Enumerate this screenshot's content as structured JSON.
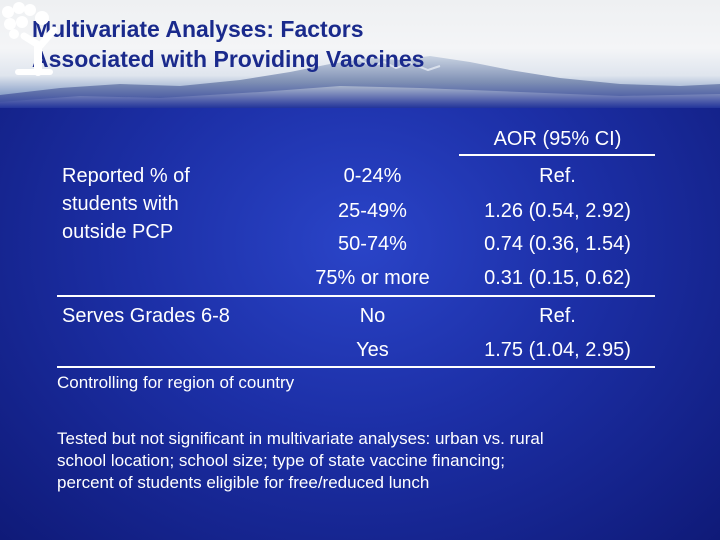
{
  "slide": {
    "title_line1": "Multivariate Analyses: Factors",
    "title_line2": "Associated with Providing Vaccines"
  },
  "table": {
    "header": "AOR (95% CI)",
    "groups": [
      {
        "label_lines": [
          "Reported % of",
          "students with",
          "outside PCP"
        ],
        "levels": [
          "0-24%",
          "25-49%",
          "50-74%",
          "75% or more"
        ],
        "aor": [
          "Ref.",
          "1.26 (0.54, 2.92)",
          "0.74 (0.36, 1.54)",
          "0.31 (0.15, 0.62)"
        ]
      },
      {
        "label_lines": [
          "Serves Grades 6-8"
        ],
        "levels": [
          "No",
          "Yes"
        ],
        "aor": [
          "Ref.",
          "1.75 (1.04, 2.95)"
        ]
      }
    ]
  },
  "notes": {
    "controlling": "Controlling for region of country",
    "tested_lines": [
      "Tested but not significant in multivariate analyses: urban vs. rural",
      "school location; school size; type of state vaccine financing;",
      "percent of students eligible for free/reduced lunch"
    ]
  },
  "colors": {
    "background": "#1c2fa6",
    "title": "#1a2a8c",
    "text": "#ffffff",
    "logo": "#ffffff"
  },
  "icons": {
    "logo": "person-logo-icon"
  }
}
